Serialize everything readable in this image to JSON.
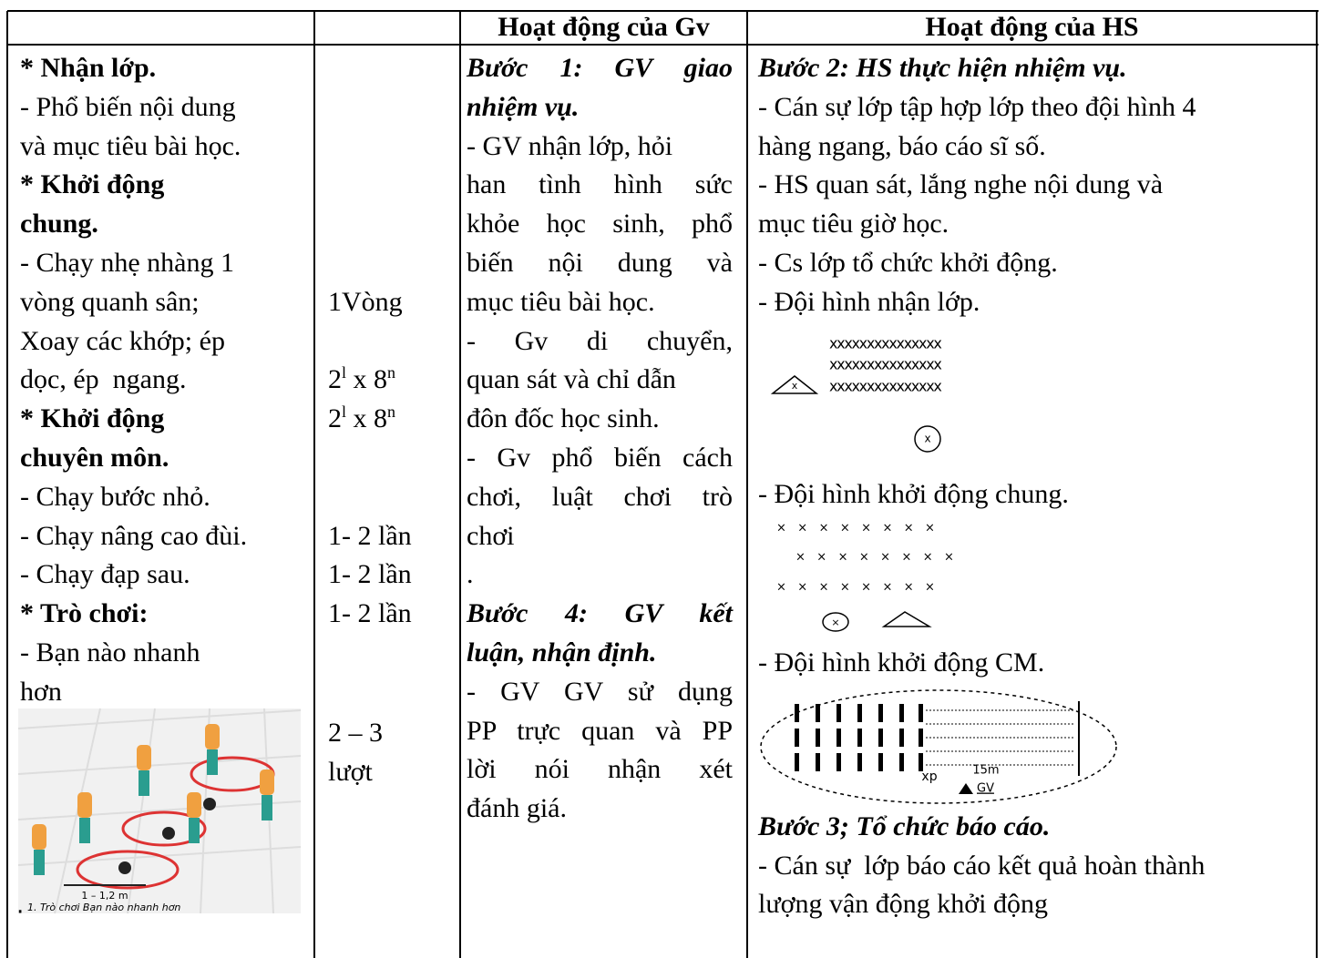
{
  "header": {
    "cells": [
      "Hoạt động của Gv",
      "Hoạt động của HS"
    ]
  },
  "content": {
    "lines": [
      "* Nhận lớp.",
      "- Phổ biến nội dung",
      "và mục tiêu bài học.",
      "* Khởi động",
      "chung.",
      "- Chạy nhẹ nhàng 1",
      "vòng quanh sân;",
      "Xoay các khớp; ép",
      "dọc, ép  ngang.",
      "* Khởi động",
      "chuyên môn.",
      "- Chạy bước nhỏ.",
      "- Chạy nâng cao đùi.",
      "- Chạy đạp sau.",
      "* Trò chơi:",
      "- Bạn nào nhanh",
      "hơn"
    ]
  },
  "image": {
    "distance": "1 – 1,2 m",
    "bullet": ".",
    "caption": "1. Trò chơi Bạn nào nhanh hơn"
  },
  "dosage": {
    "entries": [
      "1Vòng",
      [
        "2",
        "l",
        " x 8",
        "n"
      ],
      [
        "2",
        "l",
        " x 8",
        "n"
      ],
      "1- 2 lần",
      "1- 2 lần",
      "1- 2 lần",
      "2 – 3",
      "lượt"
    ]
  },
  "teacher": {
    "lines": [
      "Bước 1: GV giao",
      "nhiệm vụ.",
      "- GV nhận lớp, hỏi",
      "han tình hình sức",
      "khỏe học sinh, phổ",
      "biến nội dung và",
      "mục tiêu bài học.",
      " - Gv di chuyển,",
      "quan sát và chỉ dẫn",
      "đôn đốc học sinh.",
      "- Gv phổ biến cách",
      "chơi, luật chơi trò",
      "chơi",
      ".",
      "Bước 4: GV kết",
      "luận, nhận định.",
      "- GV GV sử dụng",
      "PP trực quan và PP",
      "lời nói nhận xét",
      "đánh giá."
    ]
  },
  "students": {
    "lines": [
      "Bước 2: HS thực hiện nhiệm vụ.",
      "- Cán sự lớp tập hợp lớp theo đội hình 4",
      "hàng ngang, báo cáo sĩ số.",
      "- HS quan sát, lắng nghe nội dung và",
      "mục tiêu giờ học.",
      "- Cs lớp tổ chức khởi động.",
      "- Đội hình nhận lớp.",
      "- Đội hình khởi động chung.",
      "- Đội hình khởi động CM.",
      "Bước 3; Tổ chức báo cáo.",
      "- Cán sự  lớp báo cáo kết quả hoàn thành",
      "lượng vận động khởi động"
    ],
    "formation1": {
      "rows": [
        "xxxxxxxxxxxxxxx",
        "xxxxxxxxxxxxxxx",
        "xxxxxxxxxxxxxxx"
      ],
      "leader": "x",
      "monitor": "x"
    },
    "formation2": {
      "rows": [
        "×   ×   ×   ×   ×   ×   ×   ×",
        "×   ×   ×   ×   ×   ×   ×   ×",
        "×   ×   ×   ×   ×   ×   ×   ×"
      ],
      "monitor": "×"
    },
    "formation3": {
      "start": "xp",
      "distance": "15m",
      "teacher": "GV"
    }
  }
}
